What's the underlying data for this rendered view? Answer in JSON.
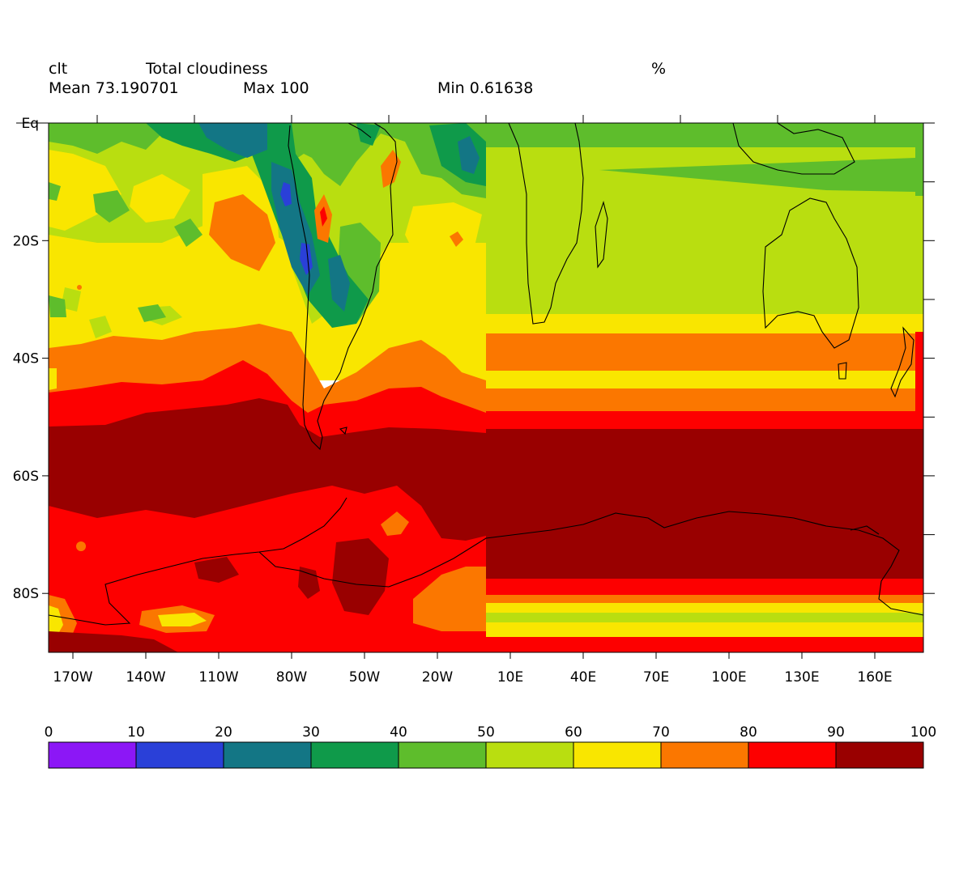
{
  "header": {
    "variable": "clt",
    "long_name": "Total cloudiness",
    "units": "%",
    "mean_label": "Mean 73.190701",
    "max_label": "Max 100",
    "min_label": "Min 0.61638"
  },
  "axes": {
    "lat_ticks": [
      "Eq",
      "20S",
      "40S",
      "60S",
      "80S"
    ],
    "lon_ticks": [
      "170W",
      "140W",
      "110W",
      "80W",
      "50W",
      "20W",
      "10E",
      "40E",
      "70E",
      "100E",
      "130E",
      "160E"
    ]
  },
  "legend": {
    "levels": [
      "0",
      "10",
      "20",
      "30",
      "40",
      "50",
      "60",
      "70",
      "80",
      "90",
      "100"
    ],
    "colors": [
      "#8c17f6",
      "#2a40d8",
      "#137685",
      "#0f9a4a",
      "#5ebd2c",
      "#b9de10",
      "#f9e600",
      "#fb7700",
      "#fd0000",
      "#990000"
    ]
  },
  "chart_data": {
    "type": "heatmap",
    "projection": "cylindrical equidistant",
    "region": {
      "lon": [
        -180,
        180
      ],
      "lat": [
        -90,
        0
      ]
    },
    "contour_levels": [
      0,
      10,
      20,
      30,
      40,
      50,
      60,
      70,
      80,
      90,
      100
    ],
    "mean": 73.190701,
    "max": 100,
    "min": 0.61638,
    "units": "%"
  }
}
